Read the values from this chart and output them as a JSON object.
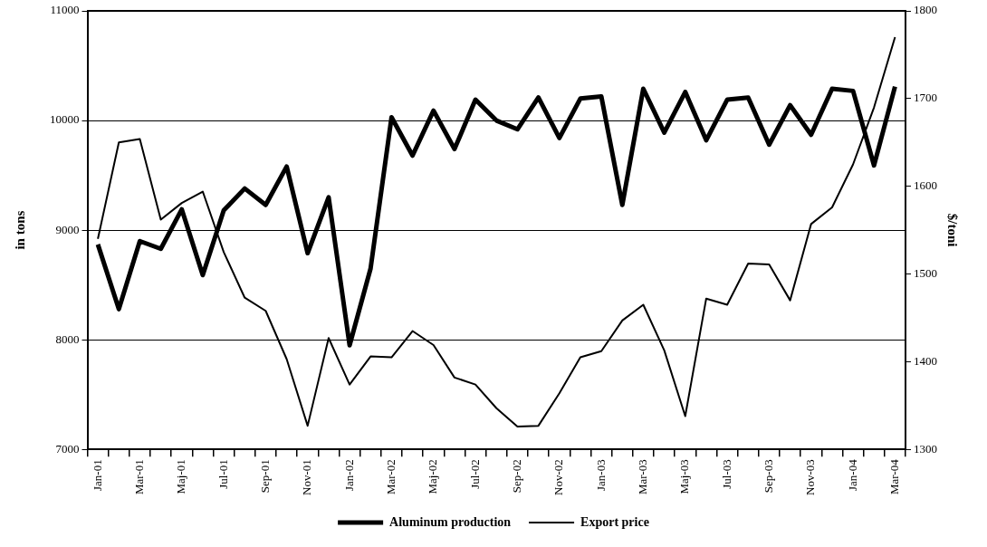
{
  "chart_data": {
    "type": "line",
    "xlabel": null,
    "ylabel": "in tons",
    "y2label": "$/toni",
    "categories": [
      "Jan-01",
      null,
      "Mar-01",
      null,
      "Maj-01",
      null,
      "Jul-01",
      null,
      "Sep-01",
      null,
      "Nov-01",
      null,
      "Jan-02",
      null,
      "Mar-02",
      null,
      "Maj-02",
      null,
      "Jul-02",
      null,
      "Sep-02",
      null,
      "Nov-02",
      null,
      "Jan-03",
      null,
      "Mar-03",
      null,
      "Maj-03",
      null,
      "Jul-03",
      null,
      "Sep-03",
      null,
      "Nov-03",
      null,
      "Jan-04",
      null,
      "Mar-04"
    ],
    "series": [
      {
        "name": "Aluminum production",
        "color": "#000000",
        "axis": "y",
        "values": [
          8870,
          8280,
          8900,
          8830,
          9190,
          8590,
          9180,
          9380,
          9230,
          9580,
          8790,
          9300,
          7950,
          8650,
          10030,
          9680,
          10090,
          9740,
          10190,
          10000,
          9920,
          10210,
          9840,
          10200,
          10220,
          9230,
          10290,
          9890,
          10260,
          9820,
          10190,
          10210,
          9780,
          10140,
          9870,
          10290,
          10270,
          9590,
          10310
        ]
      },
      {
        "name": "Export price",
        "color": "#000000",
        "axis": "y2",
        "values": [
          1540,
          1650,
          1654,
          1562,
          1581,
          1594,
          1525,
          1473,
          1458,
          1403,
          1327,
          1427,
          1374,
          1406,
          1405,
          1435,
          1419,
          1382,
          1374,
          1347,
          1326,
          1327,
          1364,
          1405,
          1412,
          1447,
          1465,
          1413,
          1338,
          1472,
          1465,
          1512,
          1511,
          1470,
          1557,
          1576,
          1625,
          1690,
          1770
        ]
      }
    ],
    "ylim": [
      7000,
      11000
    ],
    "yticks": [
      7000,
      8000,
      9000,
      10000,
      11000
    ],
    "y2lim": [
      1300,
      1800
    ],
    "y2ticks": [
      1300,
      1400,
      1500,
      1600,
      1700,
      1800
    ],
    "grid": "y",
    "legend": "bottom",
    "marker": "none",
    "line_style": "solid"
  }
}
